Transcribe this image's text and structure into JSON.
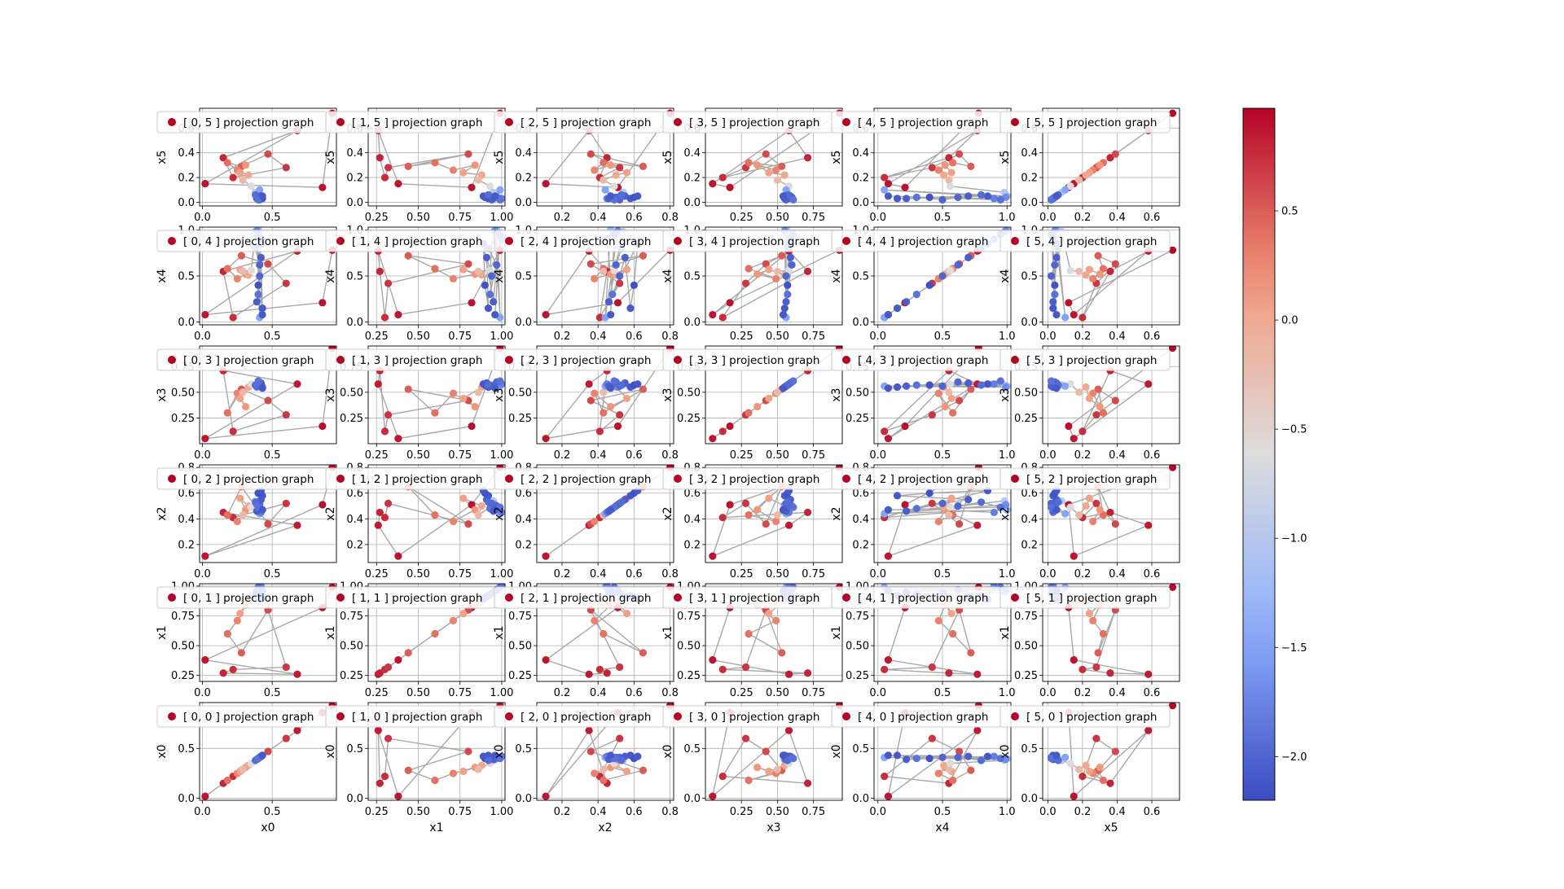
{
  "chart_data": {
    "type": "scatter",
    "grid": true,
    "line_color": "#a8a8a8",
    "colormap": "coolwarm",
    "variables": [
      "x0",
      "x1",
      "x2",
      "x3",
      "x4",
      "x5"
    ],
    "row_order": [
      5,
      4,
      3,
      2,
      1,
      0
    ],
    "legend_suffix": "projection graph",
    "bottom_xlabels": [
      "x0",
      "x1",
      "x2",
      "x3",
      "x4",
      "x5"
    ],
    "ranges": {
      "x0": [
        -0.02,
        0.96
      ],
      "x1": [
        0.2,
        1.02
      ],
      "x2": [
        0.06,
        0.82
      ],
      "x3": [
        0.0,
        0.95
      ],
      "x4": [
        -0.03,
        1.03
      ],
      "x5": [
        -0.03,
        0.76
      ]
    },
    "ticks": {
      "x0": [
        "0.0",
        "0.5"
      ],
      "x1": [
        "0.25",
        "0.50",
        "0.75",
        "1.00"
      ],
      "x2": [
        "0.2",
        "0.4",
        "0.6",
        "0.8"
      ],
      "x3": [
        "0.25",
        "0.50",
        "0.75"
      ],
      "x4": [
        "0.0",
        "0.5",
        "1.0"
      ],
      "x5": [
        "0.0",
        "0.2",
        "0.4",
        "0.6"
      ]
    },
    "colorbar": {
      "min": -2.2,
      "max": 0.97,
      "ticks": [
        "0.5",
        "0.0",
        "−0.5",
        "−1.0",
        "−1.5",
        "−2.0"
      ]
    },
    "points": [
      {
        "v": [
          0.93,
          0.99,
          0.8,
          0.93,
          0.78,
          0.72
        ],
        "c": 0.95
      },
      {
        "v": [
          0.86,
          0.82,
          0.51,
          0.17,
          0.21,
          0.12
        ],
        "c": 0.9
      },
      {
        "v": [
          0.02,
          0.38,
          0.11,
          0.05,
          0.08,
          0.15
        ],
        "c": 0.88
      },
      {
        "v": [
          0.68,
          0.26,
          0.35,
          0.58,
          0.77,
          0.58
        ],
        "c": 0.85
      },
      {
        "v": [
          0.15,
          0.27,
          0.45,
          0.71,
          0.55,
          0.36
        ],
        "c": 0.8
      },
      {
        "v": [
          0.22,
          0.3,
          0.41,
          0.12,
          0.05,
          0.2
        ],
        "c": 0.75
      },
      {
        "v": [
          0.6,
          0.32,
          0.52,
          0.28,
          0.42,
          0.28
        ],
        "c": 0.7
      },
      {
        "v": [
          0.47,
          0.8,
          0.36,
          0.42,
          0.63,
          0.39
        ],
        "c": 0.6
      },
      {
        "v": [
          0.28,
          0.44,
          0.65,
          0.53,
          0.72,
          0.29
        ],
        "c": 0.5
      },
      {
        "v": [
          0.18,
          0.6,
          0.43,
          0.3,
          0.58,
          0.32
        ],
        "c": 0.4
      },
      {
        "v": [
          0.25,
          0.71,
          0.38,
          0.49,
          0.47,
          0.26
        ],
        "c": 0.3
      },
      {
        "v": [
          0.31,
          0.84,
          0.47,
          0.36,
          0.52,
          0.3
        ],
        "c": 0.2
      },
      {
        "v": [
          0.27,
          0.77,
          0.56,
          0.44,
          0.57,
          0.24
        ],
        "c": 0.1
      },
      {
        "v": [
          0.33,
          0.88,
          0.5,
          0.55,
          0.51,
          0.22
        ],
        "c": 0.0
      },
      {
        "v": [
          0.29,
          0.86,
          0.43,
          0.5,
          0.55,
          0.18
        ],
        "c": -0.2
      },
      {
        "v": [
          0.35,
          0.93,
          0.49,
          0.58,
          0.56,
          0.13
        ],
        "c": -0.6
      },
      {
        "v": [
          0.38,
          0.95,
          0.54,
          0.57,
          0.98,
          0.08
        ],
        "c": -1.0
      },
      {
        "v": [
          0.4,
          0.97,
          0.47,
          0.56,
          1.0,
          0.05
        ],
        "c": -1.3
      },
      {
        "v": [
          0.41,
          0.99,
          0.44,
          0.56,
          0.05,
          0.1
        ],
        "c": -1.5
      },
      {
        "v": [
          0.39,
          0.96,
          0.51,
          0.55,
          0.99,
          0.04
        ],
        "c": -1.7
      },
      {
        "v": [
          0.42,
          1.0,
          0.45,
          0.58,
          0.9,
          0.03
        ],
        "c": -1.8
      },
      {
        "v": [
          0.4,
          0.93,
          0.48,
          0.57,
          0.3,
          0.04
        ],
        "c": -1.9
      },
      {
        "v": [
          0.41,
          0.94,
          0.52,
          0.56,
          0.5,
          0.02
        ],
        "c": -2.0
      },
      {
        "v": [
          0.42,
          0.91,
          0.55,
          0.59,
          0.7,
          0.05
        ],
        "c": -2.05
      },
      {
        "v": [
          0.43,
          0.92,
          0.58,
          0.55,
          0.15,
          0.03
        ],
        "c": -2.1
      },
      {
        "v": [
          0.4,
          0.9,
          0.6,
          0.57,
          0.4,
          0.04
        ],
        "c": -2.15
      },
      {
        "v": [
          0.42,
          0.89,
          0.62,
          0.58,
          0.85,
          0.05
        ],
        "c": -2.1
      },
      {
        "v": [
          0.39,
          0.95,
          0.46,
          0.56,
          0.22,
          0.03
        ],
        "c": -2.05
      },
      {
        "v": [
          0.41,
          0.97,
          0.5,
          0.6,
          0.62,
          0.04
        ],
        "c": -2.0
      },
      {
        "v": [
          0.38,
          0.92,
          0.53,
          0.57,
          0.8,
          0.06
        ],
        "c": -1.95
      },
      {
        "v": [
          0.4,
          0.99,
          0.49,
          0.61,
          0.95,
          0.02
        ],
        "c": -1.9
      },
      {
        "v": [
          0.43,
          0.96,
          0.47,
          0.54,
          0.08,
          0.05
        ],
        "c": -2.1
      }
    ]
  }
}
